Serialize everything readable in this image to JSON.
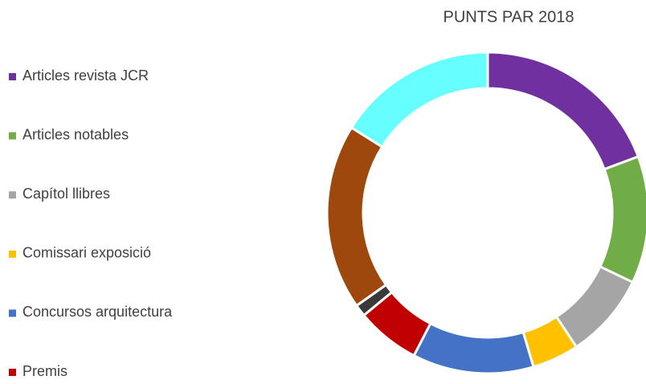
{
  "chart_data": {
    "type": "donut",
    "title": "PUNTS PAR 2018",
    "categories": [
      "Articles revista JCR",
      "Articles notables",
      "Capítol llibres",
      "Comissari exposició",
      "Concursos arquitectura",
      "Premis",
      null,
      null,
      null
    ],
    "values": [
      19.3,
      12.8,
      8.6,
      4.7,
      12.2,
      6.4,
      1.2,
      18.7,
      16.1
    ],
    "colors": [
      "#7030a0",
      "#70ad47",
      "#a5a5a5",
      "#ffc000",
      "#4472c4",
      "#c00000",
      "#3a3a3a",
      "#9e480e",
      "#66ffff"
    ],
    "legend": "left"
  }
}
